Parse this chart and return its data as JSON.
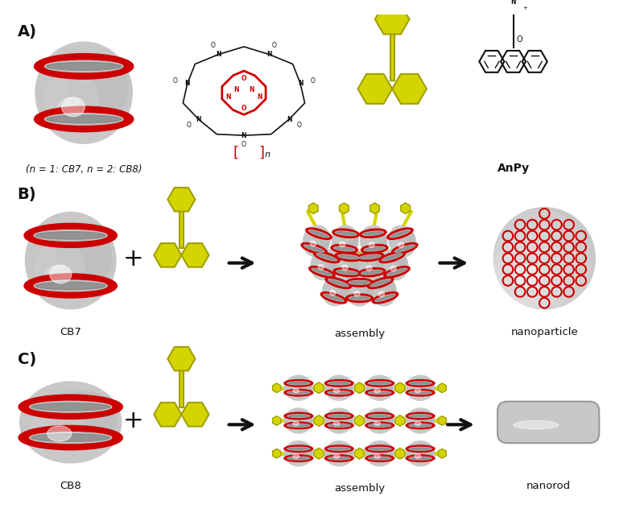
{
  "bg_color": "#ffffff",
  "label_A": "A)",
  "label_B": "B)",
  "label_C": "C)",
  "cb_label1": "(n = 1: CB7, n = 2: CB8)",
  "anpy_label": "AnPy",
  "cb7_label": "CB7",
  "cb8_label": "CB8",
  "assembly_label": "assembly",
  "nanoparticle_label": "nanoparticle",
  "nanorod_label": "nanorod",
  "yellow_color": "#d4d400",
  "yellow_dark": "#a0a000",
  "red_color": "#cc0000",
  "red_dark": "#990000",
  "gray_light": "#e0e0e0",
  "gray_mid": "#c0c0c0",
  "gray_dark": "#888888",
  "black": "#111111",
  "white": "#ffffff"
}
